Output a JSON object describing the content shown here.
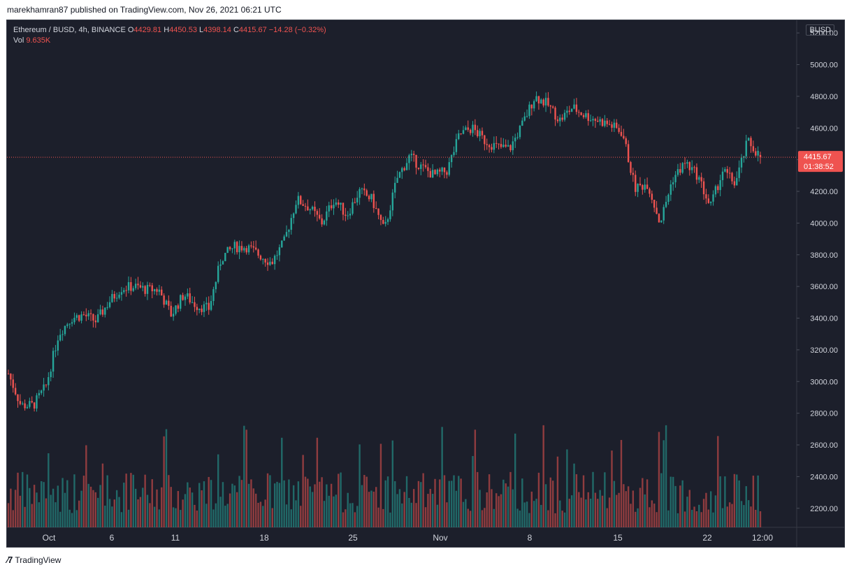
{
  "publish_line": "marekhamran87 published on TradingView.com, Nov 26, 2021 06:21 UTC",
  "legend": {
    "symbol": "Ethereum / BUSD, 4h, BINANCE",
    "o_label": "O",
    "o_value": "4429.81",
    "h_label": "H",
    "h_value": "4450.53",
    "l_label": "L",
    "l_value": "4398.14",
    "c_label": "C",
    "c_value": "4415.67",
    "change": "−14.28 (−0.32%)",
    "vol_label": "Vol",
    "vol_value": "9.635K"
  },
  "currency_tag": "BUSD",
  "last_price_label": "4415.67",
  "countdown_label": "01:38:52",
  "footer_brand": "TradingView",
  "colors": {
    "up": "#26a69a",
    "down": "#ef5350",
    "background": "#1c1f2b",
    "grid": "#2a2e39",
    "axis_text": "#d1d4dc",
    "price_line": "#ef5350"
  },
  "chart_data": {
    "type": "candlestick",
    "ylim": [
      2080,
      5280
    ],
    "y_ticks": [
      "5200.00",
      "5000.00",
      "4800.00",
      "4600.00",
      "4400.00",
      "4200.00",
      "4000.00",
      "3800.00",
      "3600.00",
      "3400.00",
      "3200.00",
      "3000.00",
      "2800.00",
      "2600.00",
      "2400.00",
      "2200.00"
    ],
    "x_ticks": [
      "Oct",
      "6",
      "11",
      "18",
      "25",
      "Nov",
      "8",
      "15",
      "22",
      "12:00"
    ],
    "last_price": 4415.67,
    "close_path": [
      {
        "t": "Sep 27",
        "close": 3050
      },
      {
        "t": "Sep 28",
        "close": 2850
      },
      {
        "t": "Sep 29",
        "close": 2850
      },
      {
        "t": "Sep 30",
        "close": 2970
      },
      {
        "t": "Oct 1",
        "close": 3300
      },
      {
        "t": "Oct 2",
        "close": 3400
      },
      {
        "t": "Oct 3",
        "close": 3420
      },
      {
        "t": "Oct 4",
        "close": 3380
      },
      {
        "t": "Oct 5",
        "close": 3500
      },
      {
        "t": "Oct 6",
        "close": 3590
      },
      {
        "t": "Oct 7",
        "close": 3600
      },
      {
        "t": "Oct 8",
        "close": 3580
      },
      {
        "t": "Oct 9",
        "close": 3580
      },
      {
        "t": "Oct 10",
        "close": 3420
      },
      {
        "t": "Oct 11",
        "close": 3550
      },
      {
        "t": "Oct 12",
        "close": 3480
      },
      {
        "t": "Oct 13",
        "close": 3460
      },
      {
        "t": "Oct 14",
        "close": 3780
      },
      {
        "t": "Oct 15",
        "close": 3850
      },
      {
        "t": "Oct 16",
        "close": 3850
      },
      {
        "t": "Oct 17",
        "close": 3800
      },
      {
        "t": "Oct 18",
        "close": 3750
      },
      {
        "t": "Oct 19",
        "close": 3880
      },
      {
        "t": "Oct 20",
        "close": 4150
      },
      {
        "t": "Oct 21",
        "close": 4100
      },
      {
        "t": "Oct 22",
        "close": 4000
      },
      {
        "t": "Oct 23",
        "close": 4150
      },
      {
        "t": "Oct 24",
        "close": 4050
      },
      {
        "t": "Oct 25",
        "close": 4200
      },
      {
        "t": "Oct 26",
        "close": 4150
      },
      {
        "t": "Oct 27",
        "close": 3950
      },
      {
        "t": "Oct 28",
        "close": 4280
      },
      {
        "t": "Oct 29",
        "close": 4420
      },
      {
        "t": "Oct 30",
        "close": 4350
      },
      {
        "t": "Oct 31",
        "close": 4300
      },
      {
        "t": "Nov 1",
        "close": 4330
      },
      {
        "t": "Nov 2",
        "close": 4560
      },
      {
        "t": "Nov 3",
        "close": 4600
      },
      {
        "t": "Nov 4",
        "close": 4520
      },
      {
        "t": "Nov 5",
        "close": 4480
      },
      {
        "t": "Nov 6",
        "close": 4470
      },
      {
        "t": "Nov 7",
        "close": 4620
      },
      {
        "t": "Nov 8",
        "close": 4800
      },
      {
        "t": "Nov 9",
        "close": 4750
      },
      {
        "t": "Nov 10",
        "close": 4650
      },
      {
        "t": "Nov 11",
        "close": 4730
      },
      {
        "t": "Nov 12",
        "close": 4680
      },
      {
        "t": "Nov 13",
        "close": 4650
      },
      {
        "t": "Nov 14",
        "close": 4620
      },
      {
        "t": "Nov 15",
        "close": 4570
      },
      {
        "t": "Nov 16",
        "close": 4220
      },
      {
        "t": "Nov 17",
        "close": 4250
      },
      {
        "t": "Nov 18",
        "close": 4000
      },
      {
        "t": "Nov 19",
        "close": 4280
      },
      {
        "t": "Nov 20",
        "close": 4380
      },
      {
        "t": "Nov 21",
        "close": 4300
      },
      {
        "t": "Nov 22",
        "close": 4100
      },
      {
        "t": "Nov 23",
        "close": 4330
      },
      {
        "t": "Nov 24",
        "close": 4250
      },
      {
        "t": "Nov 25",
        "close": 4520
      },
      {
        "t": "Nov 26",
        "close": 4415.67
      }
    ]
  }
}
